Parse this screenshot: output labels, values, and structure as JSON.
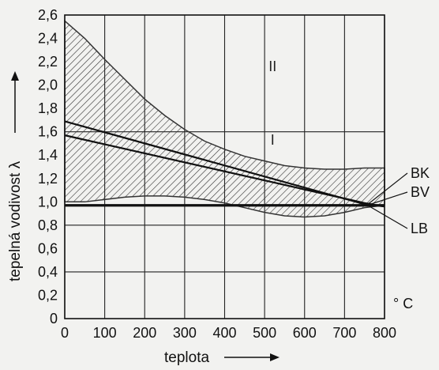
{
  "chart_data": {
    "type": "line",
    "xlabel": "teplota",
    "ylabel": "tepelná vodivost λ",
    "x_unit": "° C",
    "xlim": [
      0,
      800
    ],
    "ylim": [
      0,
      2.6
    ],
    "x_ticks": [
      "0",
      "100",
      "200",
      "300",
      "400",
      "500",
      "600",
      "700",
      "800"
    ],
    "y_ticks": [
      "0",
      "0,2",
      "0,4",
      "0,6",
      "0,8",
      "1,0",
      "1,2",
      "1,4",
      "1,6",
      "1,8",
      "2,0",
      "2,2",
      "2,4",
      "2,6"
    ],
    "grid": true,
    "regions": [
      {
        "label": "II",
        "x": 520,
        "y": 2.12
      },
      {
        "label": "I",
        "x": 520,
        "y": 1.49
      }
    ],
    "band": {
      "x": [
        0,
        50,
        100,
        150,
        200,
        250,
        300,
        350,
        400,
        450,
        500,
        550,
        600,
        650,
        700,
        750,
        800
      ],
      "upper": [
        2.55,
        2.4,
        2.22,
        2.05,
        1.88,
        1.74,
        1.62,
        1.52,
        1.45,
        1.39,
        1.35,
        1.31,
        1.29,
        1.28,
        1.28,
        1.29,
        1.29
      ],
      "lower": [
        1.0,
        1.0,
        1.02,
        1.04,
        1.05,
        1.05,
        1.04,
        1.02,
        0.99,
        0.95,
        0.91,
        0.88,
        0.87,
        0.88,
        0.91,
        0.95,
        0.97
      ]
    },
    "series": [
      {
        "name": "BK",
        "x": [
          0,
          750,
          800
        ],
        "y": [
          1.69,
          0.98,
          0.96
        ]
      },
      {
        "name": "BV",
        "x": [
          0,
          750,
          800
        ],
        "y": [
          1.57,
          0.99,
          0.96
        ]
      },
      {
        "name": "LB",
        "x": [
          0,
          800
        ],
        "y": [
          0.97,
          0.97
        ]
      }
    ]
  },
  "arrows": {
    "x": "→",
    "y": "→"
  }
}
